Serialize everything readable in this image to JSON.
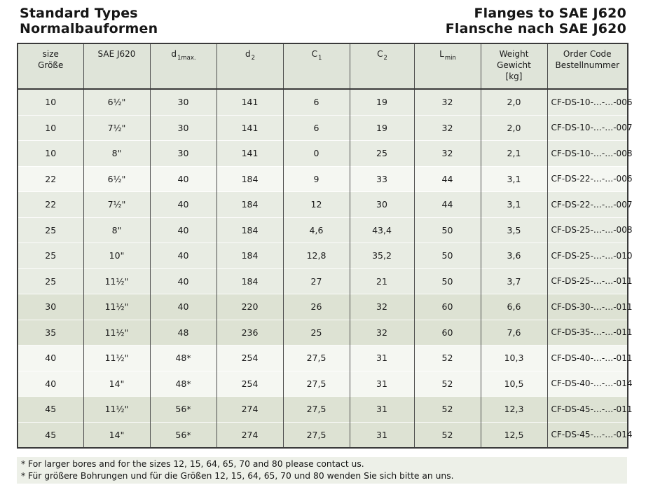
{
  "header": {
    "title_en": "Standard Types",
    "title_de": "Normalbauformen",
    "subject_en": "Flanges to SAE J620",
    "subject_de": "Flansche nach SAE J620"
  },
  "table": {
    "columns": [
      {
        "key": "size",
        "line1": "size",
        "line2": "Größe"
      },
      {
        "key": "sae",
        "line1": "SAE J620"
      },
      {
        "key": "d1max",
        "line1": "d",
        "sub": "1max."
      },
      {
        "key": "d2",
        "line1": "d",
        "sub": "2"
      },
      {
        "key": "c1",
        "line1": "C",
        "sub": "1"
      },
      {
        "key": "c2",
        "line1": "C",
        "sub": "2"
      },
      {
        "key": "lmin",
        "line1": "L",
        "sub": "min"
      },
      {
        "key": "weight",
        "line1": "Weight",
        "line2": "Gewicht",
        "line3": "[kg]"
      },
      {
        "key": "order",
        "line1": "Order Code",
        "line2": "Bestellnummer"
      }
    ],
    "rows": [
      {
        "shade": "mid",
        "size": "10",
        "sae": "6½\"",
        "d1max": "30",
        "d2": "141",
        "c1": "6",
        "c2": "19",
        "lmin": "32",
        "weight": "2,0",
        "order": "CF-DS-10-…-…-006"
      },
      {
        "shade": "mid",
        "size": "10",
        "sae": "7½\"",
        "d1max": "30",
        "d2": "141",
        "c1": "6",
        "c2": "19",
        "lmin": "32",
        "weight": "2,0",
        "order": "CF-DS-10-…-…-007"
      },
      {
        "shade": "mid",
        "size": "10",
        "sae": "8\"",
        "d1max": "30",
        "d2": "141",
        "c1": "0",
        "c2": "25",
        "lmin": "32",
        "weight": "2,1",
        "order": "CF-DS-10-…-…-008"
      },
      {
        "shade": "light",
        "size": "22",
        "sae": "6½\"",
        "d1max": "40",
        "d2": "184",
        "c1": "9",
        "c2": "33",
        "lmin": "44",
        "weight": "3,1",
        "order": "CF-DS-22-…-…-006"
      },
      {
        "shade": "mid",
        "size": "22",
        "sae": "7½\"",
        "d1max": "40",
        "d2": "184",
        "c1": "12",
        "c2": "30",
        "lmin": "44",
        "weight": "3,1",
        "order": "CF-DS-22-…-…-007"
      },
      {
        "shade": "mid",
        "size": "25",
        "sae": "8\"",
        "d1max": "40",
        "d2": "184",
        "c1": "4,6",
        "c2": "43,4",
        "lmin": "50",
        "weight": "3,5",
        "order": "CF-DS-25-…-…-008"
      },
      {
        "shade": "mid",
        "size": "25",
        "sae": "10\"",
        "d1max": "40",
        "d2": "184",
        "c1": "12,8",
        "c2": "35,2",
        "lmin": "50",
        "weight": "3,6",
        "order": "CF-DS-25-…-…-010"
      },
      {
        "shade": "mid",
        "size": "25",
        "sae": "11½\"",
        "d1max": "40",
        "d2": "184",
        "c1": "27",
        "c2": "21",
        "lmin": "50",
        "weight": "3,7",
        "order": "CF-DS-25-…-…-011"
      },
      {
        "shade": "dark",
        "size": "30",
        "sae": "11½\"",
        "d1max": "40",
        "d2": "220",
        "c1": "26",
        "c2": "32",
        "lmin": "60",
        "weight": "6,6",
        "order": "CF-DS-30-…-…-011"
      },
      {
        "shade": "dark",
        "size": "35",
        "sae": "11½\"",
        "d1max": "48",
        "d2": "236",
        "c1": "25",
        "c2": "32",
        "lmin": "60",
        "weight": "7,6",
        "order": "CF-DS-35-…-…-011"
      },
      {
        "shade": "light",
        "size": "40",
        "sae": "11½\"",
        "d1max": "48*",
        "d2": "254",
        "c1": "27,5",
        "c2": "31",
        "lmin": "52",
        "weight": "10,3",
        "order": "CF-DS-40-…-…-011"
      },
      {
        "shade": "light",
        "size": "40",
        "sae": "14\"",
        "d1max": "48*",
        "d2": "254",
        "c1": "27,5",
        "c2": "31",
        "lmin": "52",
        "weight": "10,5",
        "order": "CF-DS-40-…-…-014"
      },
      {
        "shade": "dark",
        "size": "45",
        "sae": "11½\"",
        "d1max": "56*",
        "d2": "274",
        "c1": "27,5",
        "c2": "31",
        "lmin": "52",
        "weight": "12,3",
        "order": "CF-DS-45-…-…-011"
      },
      {
        "shade": "dark",
        "size": "45",
        "sae": "14\"",
        "d1max": "56*",
        "d2": "274",
        "c1": "27,5",
        "c2": "31",
        "lmin": "52",
        "weight": "12,5",
        "order": "CF-DS-45-…-…-014"
      }
    ]
  },
  "footnotes": [
    "* For larger bores and for the sizes 12, 15, 64, 65, 70 and 80 please contact us.",
    "* Für größere Bohrungen und für die Größen 12, 15, 64, 65, 70 und 80 wenden Sie sich bitte an uns."
  ],
  "colors": {
    "header_bg": "#dfe4d9",
    "footnote_bg": "#edf0e8",
    "row_shades": {
      "light": "#f5f7f2",
      "mid": "#e8ece3",
      "dark": "#dde2d3"
    }
  }
}
